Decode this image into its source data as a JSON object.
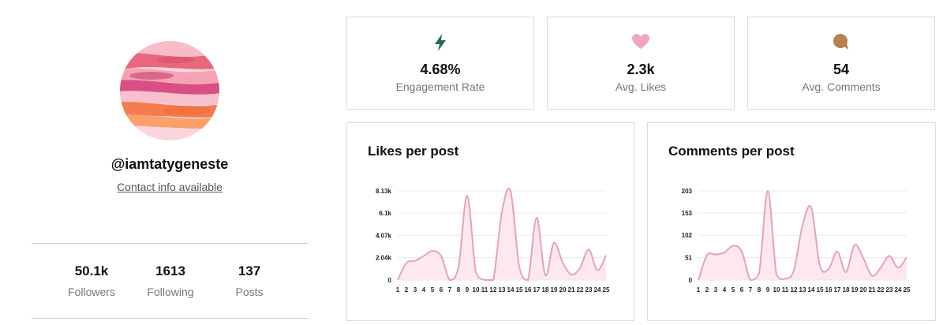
{
  "profile": {
    "avatar_icon": "watercolor-avatar",
    "handle": "@iamtatygeneste",
    "contact_link": "Contact info available",
    "stats": [
      {
        "value": "50.1k",
        "label": "Followers"
      },
      {
        "value": "1613",
        "label": "Following"
      },
      {
        "value": "137",
        "label": "Posts"
      }
    ]
  },
  "metrics": [
    {
      "icon": "lightning-icon",
      "color": "#1f6e5c",
      "value": "4.68%",
      "label": "Engagement Rate"
    },
    {
      "icon": "heart-icon",
      "color": "#f2a6bd",
      "value": "2.3k",
      "label": "Avg. Likes"
    },
    {
      "icon": "comment-icon",
      "color": "#b5824c",
      "value": "54",
      "label": "Avg. Comments"
    }
  ],
  "colors": {
    "line": "#e8a2b8",
    "fill": "#fbe4ea",
    "grid": "#ebebeb"
  },
  "chart_data": [
    {
      "type": "area",
      "title": "Likes per post",
      "x": [
        1,
        2,
        3,
        4,
        5,
        6,
        7,
        8,
        9,
        10,
        11,
        12,
        13,
        14,
        15,
        16,
        17,
        18,
        19,
        20,
        21,
        22,
        23,
        24,
        25
      ],
      "x_ticks": [
        "1",
        "2",
        "3",
        "4",
        "5",
        "6",
        "7",
        "8",
        "9",
        "10",
        "11",
        "12",
        "13",
        "14",
        "15",
        "16",
        "17",
        "18",
        "19",
        "20",
        "21",
        "22",
        "23",
        "24",
        "25"
      ],
      "y_ticks": [
        {
          "value": 0,
          "label": "0"
        },
        {
          "value": 2040,
          "label": "2.04k"
        },
        {
          "value": 4070,
          "label": "4.07k"
        },
        {
          "value": 6100,
          "label": "6.1k"
        },
        {
          "value": 8130,
          "label": "8.13k"
        }
      ],
      "ylim": [
        0,
        8130
      ],
      "y": [
        0,
        1550,
        1750,
        2200,
        2650,
        2200,
        0,
        1200,
        7700,
        750,
        0,
        0,
        6200,
        8100,
        1250,
        0,
        5700,
        450,
        3400,
        1600,
        500,
        1100,
        2800,
        900,
        2250
      ],
      "grid": true
    },
    {
      "type": "area",
      "title": "Comments per post",
      "x": [
        1,
        2,
        3,
        4,
        5,
        6,
        7,
        8,
        9,
        10,
        11,
        12,
        13,
        14,
        15,
        16,
        17,
        18,
        19,
        20,
        21,
        22,
        23,
        24,
        25
      ],
      "x_ticks": [
        "1",
        "2",
        "3",
        "4",
        "5",
        "6",
        "7",
        "8",
        "9",
        "10",
        "11",
        "12",
        "13",
        "14",
        "15",
        "16",
        "17",
        "18",
        "19",
        "20",
        "21",
        "22",
        "23",
        "24",
        "25"
      ],
      "y_ticks": [
        {
          "value": 0,
          "label": "0"
        },
        {
          "value": 51,
          "label": "51"
        },
        {
          "value": 102,
          "label": "102"
        },
        {
          "value": 153,
          "label": "153"
        },
        {
          "value": 203,
          "label": "203"
        }
      ],
      "ylim": [
        0,
        203
      ],
      "y": [
        0,
        57,
        58,
        63,
        78,
        65,
        0,
        16,
        203,
        12,
        3,
        22,
        125,
        165,
        33,
        25,
        65,
        18,
        80,
        50,
        10,
        28,
        55,
        28,
        52
      ],
      "grid": true
    }
  ]
}
